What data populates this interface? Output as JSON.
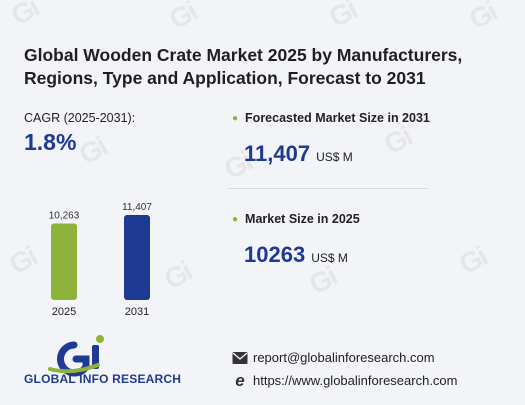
{
  "header": {
    "title": "Global Wooden Crate Market 2025 by Manufacturers, Regions, Type and Application, Forecast to 2031"
  },
  "cagr": {
    "label": "CAGR (2025-2031):",
    "value": "1.8%"
  },
  "metrics": {
    "forecast": {
      "label": "Forecasted Market Size in 2031",
      "value": "11,407",
      "unit": "US$ M"
    },
    "current": {
      "label": "Market Size in 2025",
      "value": "10263",
      "unit": "US$ M"
    }
  },
  "chart_data": {
    "type": "bar",
    "categories": [
      "2025",
      "2031"
    ],
    "values": [
      10263,
      11407
    ],
    "data_labels": [
      "10,263",
      "11,407"
    ],
    "colors": [
      "#8db33a",
      "#1f3a93"
    ],
    "title": "",
    "xlabel": "",
    "ylabel": "",
    "ylim": [
      0,
      11407
    ]
  },
  "brand": {
    "logo_text": "GLOBAL INFO RESEARCH",
    "accent": "#1f3a93",
    "green": "#8db33a"
  },
  "contact": {
    "email": "report@globalinforesearch.com",
    "website": "https://www.globalinforesearch.com"
  }
}
